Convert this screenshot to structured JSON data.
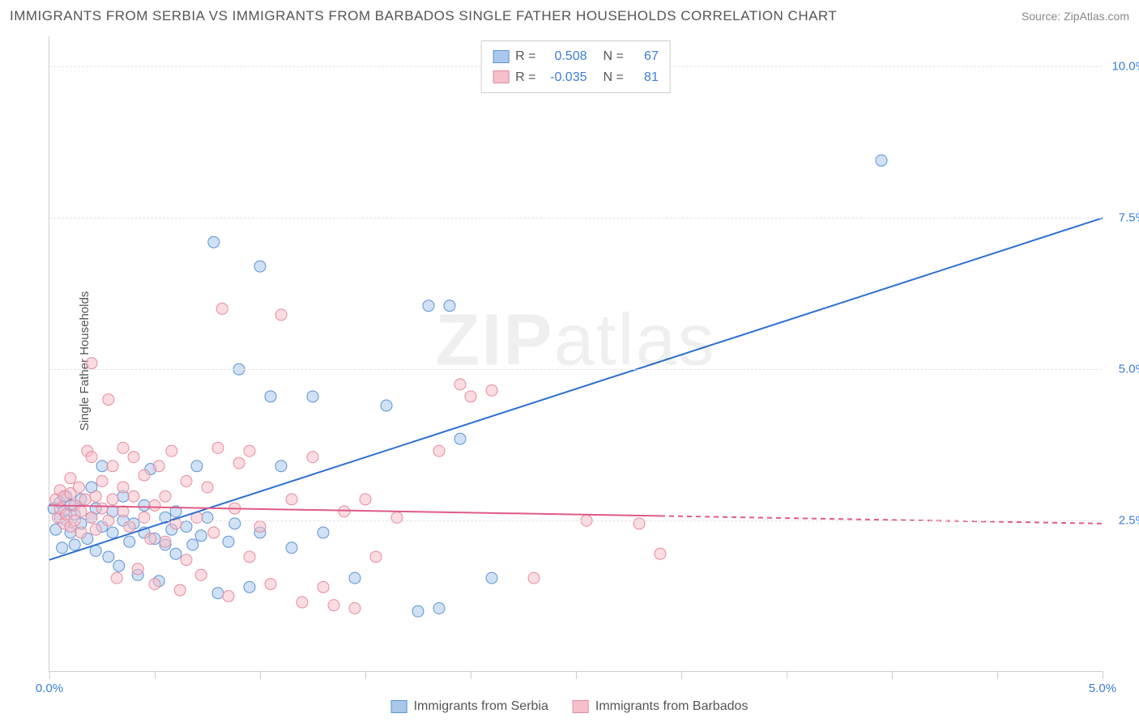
{
  "title": "IMMIGRANTS FROM SERBIA VS IMMIGRANTS FROM BARBADOS SINGLE FATHER HOUSEHOLDS CORRELATION CHART",
  "source_label": "Source: ZipAtlas.com",
  "y_axis_label": "Single Father Households",
  "watermark": "ZIPatlas",
  "chart": {
    "type": "scatter",
    "xlim": [
      0.0,
      5.0
    ],
    "ylim": [
      0.0,
      10.5
    ],
    "x_ticks": [
      0.0,
      0.5,
      1.0,
      1.5,
      2.0,
      2.5,
      3.0,
      3.5,
      4.0,
      4.5,
      5.0
    ],
    "x_tick_labels": {
      "0": "0.0%",
      "10": "5.0%"
    },
    "y_ticks": [
      2.5,
      5.0,
      7.5,
      10.0
    ],
    "y_tick_labels": [
      "2.5%",
      "5.0%",
      "7.5%",
      "10.0%"
    ],
    "background_color": "#ffffff",
    "grid_color": "#e5e5e5",
    "marker_radius": 7,
    "marker_opacity": 0.55,
    "series": [
      {
        "name": "Immigrants from Serbia",
        "color_fill": "#a9c8ec",
        "color_stroke": "#5b93d4",
        "R": "0.508",
        "N": "67",
        "trend": {
          "x1": 0.0,
          "y1": 1.85,
          "x2": 5.0,
          "y2": 7.5,
          "solid_until_x": 5.0,
          "color": "#2d6fd2",
          "width": 2
        },
        "points": [
          [
            0.02,
            2.7
          ],
          [
            0.03,
            2.35
          ],
          [
            0.05,
            2.55
          ],
          [
            0.05,
            2.8
          ],
          [
            0.06,
            2.05
          ],
          [
            0.07,
            2.65
          ],
          [
            0.08,
            2.5
          ],
          [
            0.08,
            2.9
          ],
          [
            0.1,
            2.3
          ],
          [
            0.1,
            2.75
          ],
          [
            0.12,
            2.1
          ],
          [
            0.12,
            2.6
          ],
          [
            0.15,
            2.45
          ],
          [
            0.15,
            2.85
          ],
          [
            0.18,
            2.2
          ],
          [
            0.2,
            2.55
          ],
          [
            0.2,
            3.05
          ],
          [
            0.22,
            2.0
          ],
          [
            0.22,
            2.7
          ],
          [
            0.25,
            2.4
          ],
          [
            0.25,
            3.4
          ],
          [
            0.28,
            1.9
          ],
          [
            0.3,
            2.3
          ],
          [
            0.3,
            2.65
          ],
          [
            0.33,
            1.75
          ],
          [
            0.35,
            2.5
          ],
          [
            0.35,
            2.9
          ],
          [
            0.38,
            2.15
          ],
          [
            0.4,
            2.45
          ],
          [
            0.42,
            1.6
          ],
          [
            0.45,
            2.3
          ],
          [
            0.45,
            2.75
          ],
          [
            0.48,
            3.35
          ],
          [
            0.5,
            2.2
          ],
          [
            0.52,
            1.5
          ],
          [
            0.55,
            2.55
          ],
          [
            0.55,
            2.1
          ],
          [
            0.58,
            2.35
          ],
          [
            0.6,
            2.65
          ],
          [
            0.6,
            1.95
          ],
          [
            0.65,
            2.4
          ],
          [
            0.68,
            2.1
          ],
          [
            0.7,
            3.4
          ],
          [
            0.72,
            2.25
          ],
          [
            0.75,
            2.55
          ],
          [
            0.78,
            7.1
          ],
          [
            0.8,
            1.3
          ],
          [
            0.85,
            2.15
          ],
          [
            0.88,
            2.45
          ],
          [
            0.9,
            5.0
          ],
          [
            0.95,
            1.4
          ],
          [
            1.0,
            6.7
          ],
          [
            1.0,
            2.3
          ],
          [
            1.05,
            4.55
          ],
          [
            1.1,
            3.4
          ],
          [
            1.15,
            2.05
          ],
          [
            1.25,
            4.55
          ],
          [
            1.3,
            2.3
          ],
          [
            1.45,
            1.55
          ],
          [
            1.6,
            4.4
          ],
          [
            1.75,
            1.0
          ],
          [
            1.8,
            6.05
          ],
          [
            1.85,
            1.05
          ],
          [
            1.9,
            6.05
          ],
          [
            1.95,
            3.85
          ],
          [
            2.1,
            1.55
          ],
          [
            3.95,
            8.45
          ]
        ]
      },
      {
        "name": "Immigrants from Barbados",
        "color_fill": "#f6bfc9",
        "color_stroke": "#e68aa0",
        "R": "-0.035",
        "N": "81",
        "trend": {
          "x1": 0.0,
          "y1": 2.75,
          "x2": 5.0,
          "y2": 2.45,
          "solid_until_x": 2.9,
          "color": "#e05a87",
          "width": 2
        },
        "points": [
          [
            0.03,
            2.85
          ],
          [
            0.04,
            2.55
          ],
          [
            0.05,
            2.7
          ],
          [
            0.05,
            3.0
          ],
          [
            0.07,
            2.45
          ],
          [
            0.07,
            2.9
          ],
          [
            0.08,
            2.6
          ],
          [
            0.1,
            2.4
          ],
          [
            0.1,
            2.95
          ],
          [
            0.1,
            3.2
          ],
          [
            0.12,
            2.75
          ],
          [
            0.12,
            2.5
          ],
          [
            0.14,
            3.05
          ],
          [
            0.15,
            2.65
          ],
          [
            0.15,
            2.3
          ],
          [
            0.17,
            2.85
          ],
          [
            0.18,
            3.65
          ],
          [
            0.2,
            2.55
          ],
          [
            0.2,
            3.55
          ],
          [
            0.2,
            5.1
          ],
          [
            0.22,
            2.9
          ],
          [
            0.22,
            2.35
          ],
          [
            0.25,
            2.7
          ],
          [
            0.25,
            3.15
          ],
          [
            0.28,
            2.5
          ],
          [
            0.28,
            4.5
          ],
          [
            0.3,
            2.85
          ],
          [
            0.3,
            3.4
          ],
          [
            0.32,
            1.55
          ],
          [
            0.35,
            2.65
          ],
          [
            0.35,
            3.05
          ],
          [
            0.35,
            3.7
          ],
          [
            0.38,
            2.4
          ],
          [
            0.4,
            3.55
          ],
          [
            0.4,
            2.9
          ],
          [
            0.42,
            1.7
          ],
          [
            0.45,
            2.55
          ],
          [
            0.45,
            3.25
          ],
          [
            0.48,
            2.2
          ],
          [
            0.5,
            2.75
          ],
          [
            0.5,
            1.45
          ],
          [
            0.52,
            3.4
          ],
          [
            0.55,
            2.15
          ],
          [
            0.55,
            2.9
          ],
          [
            0.58,
            3.65
          ],
          [
            0.6,
            2.45
          ],
          [
            0.62,
            1.35
          ],
          [
            0.65,
            3.15
          ],
          [
            0.65,
            1.85
          ],
          [
            0.7,
            2.55
          ],
          [
            0.72,
            1.6
          ],
          [
            0.75,
            3.05
          ],
          [
            0.78,
            2.3
          ],
          [
            0.8,
            3.7
          ],
          [
            0.82,
            6.0
          ],
          [
            0.85,
            1.25
          ],
          [
            0.88,
            2.7
          ],
          [
            0.9,
            3.45
          ],
          [
            0.95,
            1.9
          ],
          [
            0.95,
            3.65
          ],
          [
            1.0,
            2.4
          ],
          [
            1.05,
            1.45
          ],
          [
            1.1,
            5.9
          ],
          [
            1.15,
            2.85
          ],
          [
            1.2,
            1.15
          ],
          [
            1.25,
            3.55
          ],
          [
            1.3,
            1.4
          ],
          [
            1.35,
            1.1
          ],
          [
            1.4,
            2.65
          ],
          [
            1.45,
            1.05
          ],
          [
            1.5,
            2.85
          ],
          [
            1.55,
            1.9
          ],
          [
            1.65,
            2.55
          ],
          [
            1.85,
            3.65
          ],
          [
            1.95,
            4.75
          ],
          [
            2.0,
            4.55
          ],
          [
            2.1,
            4.65
          ],
          [
            2.3,
            1.55
          ],
          [
            2.55,
            2.5
          ],
          [
            2.8,
            2.45
          ],
          [
            2.9,
            1.95
          ]
        ]
      }
    ]
  },
  "legend_bottom": [
    {
      "label": "Immigrants from Serbia",
      "fill": "#a9c8ec",
      "stroke": "#5b93d4"
    },
    {
      "label": "Immigrants from Barbados",
      "fill": "#f6bfc9",
      "stroke": "#e68aa0"
    }
  ]
}
